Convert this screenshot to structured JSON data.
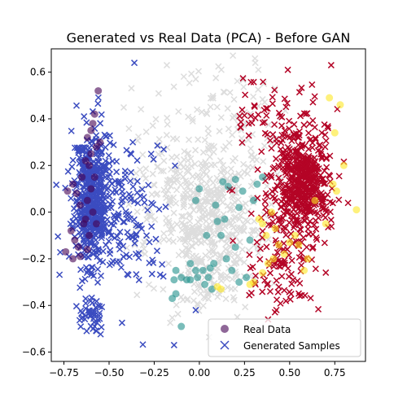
{
  "chart_data": {
    "type": "scatter",
    "title": "Generated vs Real Data (PCA) - Before GAN",
    "xlabel": "",
    "ylabel": "",
    "xlim": [
      -0.82,
      0.92
    ],
    "ylim": [
      -0.64,
      0.7
    ],
    "xticks": [
      -0.75,
      -0.5,
      -0.25,
      0.0,
      0.25,
      0.5,
      0.75
    ],
    "xtick_labels": [
      "−0.75",
      "−0.50",
      "−0.25",
      "0.00",
      "0.25",
      "0.50",
      "0.75"
    ],
    "yticks": [
      -0.6,
      -0.4,
      -0.2,
      0.0,
      0.2,
      0.4,
      0.6
    ],
    "ytick_labels": [
      "−0.6",
      "−0.4",
      "−0.2",
      "0.0",
      "0.2",
      "0.4",
      "0.6"
    ],
    "grid": false,
    "legend_position": "bottom-right",
    "series": [
      {
        "name": "Real Data",
        "marker": "circle",
        "alpha": 0.6,
        "colors": {
          "class0": "#440154",
          "class1": "#21918c",
          "class2": "#fde725"
        },
        "points": [
          [
            -0.56,
            0.52
          ],
          [
            -0.58,
            0.42
          ],
          [
            -0.59,
            0.38
          ],
          [
            -0.62,
            0.32
          ],
          [
            -0.57,
            0.28
          ],
          [
            -0.6,
            0.25
          ],
          [
            -0.55,
            0.3
          ],
          [
            -0.61,
            0.2
          ],
          [
            -0.58,
            0.15
          ],
          [
            -0.6,
            0.1
          ],
          [
            -0.62,
            0.05
          ],
          [
            -0.59,
            0.0
          ],
          [
            -0.63,
            -0.03
          ],
          [
            -0.68,
            0.08
          ],
          [
            -0.7,
            0.12
          ],
          [
            -0.73,
            0.09
          ],
          [
            -0.66,
            0.03
          ],
          [
            -0.64,
            -0.05
          ],
          [
            -0.71,
            -0.08
          ],
          [
            -0.69,
            -0.12
          ],
          [
            -0.67,
            -0.15
          ],
          [
            -0.7,
            -0.2
          ],
          [
            -0.74,
            -0.17
          ],
          [
            -0.61,
            -0.1
          ],
          [
            -0.57,
            -0.05
          ],
          [
            -0.6,
            0.35
          ],
          [
            -0.63,
            0.22
          ],
          [
            -0.65,
            0.15
          ],
          [
            -0.62,
            -0.16
          ],
          [
            -0.66,
            -0.19
          ],
          [
            0.13,
            0.13
          ],
          [
            0.16,
            0.11
          ],
          [
            0.2,
            0.14
          ],
          [
            0.24,
            0.09
          ],
          [
            0.32,
            0.12
          ],
          [
            0.35,
            0.15
          ],
          [
            0.3,
            0.05
          ],
          [
            0.1,
            -0.04
          ],
          [
            0.08,
            -0.22
          ],
          [
            0.02,
            -0.25
          ],
          [
            0.05,
            -0.28
          ],
          [
            -0.05,
            -0.22
          ],
          [
            -0.02,
            -0.25
          ],
          [
            -0.01,
            -0.28
          ],
          [
            -0.05,
            -0.29
          ],
          [
            -0.07,
            -0.29
          ],
          [
            -0.1,
            -0.28
          ],
          [
            -0.14,
            -0.29
          ],
          [
            -0.13,
            -0.35
          ],
          [
            -0.15,
            -0.37
          ],
          [
            -0.13,
            -0.25
          ],
          [
            -0.1,
            -0.49
          ],
          [
            0.07,
            -0.33
          ],
          [
            0.03,
            -0.31
          ],
          [
            0.06,
            -0.24
          ],
          [
            0.15,
            -0.2
          ],
          [
            0.18,
            -0.25
          ],
          [
            0.22,
            -0.3
          ],
          [
            0.26,
            -0.28
          ],
          [
            0.12,
            -0.1
          ],
          [
            0.0,
            0.1
          ],
          [
            -0.02,
            0.05
          ],
          [
            0.04,
            -0.1
          ],
          [
            0.14,
            -0.03
          ],
          [
            0.22,
            0.02
          ],
          [
            0.28,
            -0.12
          ],
          [
            0.2,
            -0.15
          ],
          [
            0.09,
            0.03
          ],
          [
            0.72,
            0.49
          ],
          [
            0.78,
            0.46
          ],
          [
            0.87,
            0.01
          ],
          [
            0.75,
            0.34
          ],
          [
            0.8,
            0.2
          ],
          [
            0.76,
            0.09
          ],
          [
            0.74,
            0.12
          ],
          [
            0.53,
            -0.1
          ],
          [
            0.5,
            -0.13
          ],
          [
            0.55,
            -0.14
          ],
          [
            0.47,
            -0.18
          ],
          [
            0.41,
            -0.2
          ],
          [
            0.38,
            -0.22
          ],
          [
            0.35,
            -0.26
          ],
          [
            0.3,
            -0.3
          ],
          [
            0.28,
            -0.31
          ],
          [
            0.1,
            -0.32
          ],
          [
            0.12,
            -0.33
          ],
          [
            0.35,
            -0.05
          ],
          [
            0.4,
            0.0
          ],
          [
            0.42,
            -0.07
          ],
          [
            0.33,
            -0.03
          ],
          [
            0.37,
            -0.1
          ],
          [
            0.44,
            -0.14
          ],
          [
            0.64,
            0.05
          ],
          [
            0.7,
            -0.05
          ],
          [
            0.6,
            -0.2
          ],
          [
            0.58,
            -0.25
          ]
        ],
        "classes": [
          0,
          0,
          0,
          0,
          0,
          0,
          0,
          0,
          0,
          0,
          0,
          0,
          0,
          0,
          0,
          0,
          0,
          0,
          0,
          0,
          0,
          0,
          0,
          0,
          0,
          0,
          0,
          0,
          0,
          0,
          1,
          1,
          1,
          1,
          1,
          1,
          1,
          1,
          1,
          1,
          1,
          1,
          1,
          1,
          1,
          1,
          1,
          1,
          1,
          1,
          1,
          1,
          1,
          1,
          1,
          1,
          1,
          1,
          1,
          1,
          1,
          1,
          1,
          1,
          1,
          1,
          1,
          1,
          2,
          2,
          2,
          2,
          2,
          2,
          2,
          2,
          2,
          2,
          2,
          2,
          2,
          2,
          2,
          2,
          2,
          2,
          2,
          2,
          2,
          2,
          2,
          2,
          2,
          2,
          2,
          2,
          2,
          2
        ]
      },
      {
        "name": "Generated Samples",
        "marker": "x",
        "colors": {
          "left": "#3b4cc0",
          "middle": "#dddddd",
          "right": "#b40426"
        },
        "clusters": [
          {
            "color_key": "left",
            "n": 420,
            "cx": -0.6,
            "cy": 0.05,
            "sx": 0.045,
            "sy": 0.14,
            "seed": 11
          },
          {
            "color_key": "left",
            "n": 170,
            "cx": -0.5,
            "cy": 0.05,
            "sx": 0.11,
            "sy": 0.17,
            "seed": 12
          },
          {
            "color_key": "left",
            "n": 45,
            "cx": -0.6,
            "cy": -0.44,
            "sx": 0.035,
            "sy": 0.035,
            "seed": 13
          },
          {
            "color_key": "left",
            "n": 55,
            "cx": -0.3,
            "cy": -0.05,
            "sx": 0.12,
            "sy": 0.16,
            "seed": 14
          },
          {
            "color_key": "middle",
            "n": 380,
            "cx": 0.08,
            "cy": -0.05,
            "sx": 0.15,
            "sy": 0.14,
            "seed": 21
          },
          {
            "color_key": "middle",
            "n": 140,
            "cx": -0.15,
            "cy": 0.15,
            "sx": 0.13,
            "sy": 0.18,
            "seed": 22
          },
          {
            "color_key": "middle",
            "n": 90,
            "cx": 0.2,
            "cy": 0.35,
            "sx": 0.12,
            "sy": 0.14,
            "seed": 23
          },
          {
            "color_key": "middle",
            "n": 50,
            "cx": 0.0,
            "cy": -0.35,
            "sx": 0.1,
            "sy": 0.08,
            "seed": 24
          },
          {
            "color_key": "right",
            "n": 360,
            "cx": 0.58,
            "cy": 0.13,
            "sx": 0.07,
            "sy": 0.1,
            "seed": 31
          },
          {
            "color_key": "right",
            "n": 190,
            "cx": 0.5,
            "cy": 0.1,
            "sx": 0.12,
            "sy": 0.19,
            "seed": 32
          },
          {
            "color_key": "right",
            "n": 70,
            "cx": 0.45,
            "cy": -0.28,
            "sx": 0.09,
            "sy": 0.08,
            "seed": 33
          },
          {
            "color_key": "right",
            "n": 40,
            "cx": 0.35,
            "cy": 0.42,
            "sx": 0.1,
            "sy": 0.08,
            "seed": 34
          }
        ],
        "outliers": [
          [
            -0.36,
            0.64
          ],
          [
            0.31,
            0.64
          ],
          [
            0.73,
            0.63
          ],
          [
            -0.18,
            0.63
          ],
          [
            0.49,
            0.61
          ],
          [
            -0.14,
            -0.57
          ],
          [
            -0.57,
            -0.51
          ],
          [
            -0.58,
            -0.49
          ],
          [
            0.21,
            -0.45
          ],
          [
            -0.02,
            -0.42
          ]
        ],
        "outlier_colors": [
          "left",
          "middle",
          "right",
          "middle",
          "right",
          "left",
          "left",
          "left",
          "middle",
          "left"
        ]
      }
    ]
  }
}
